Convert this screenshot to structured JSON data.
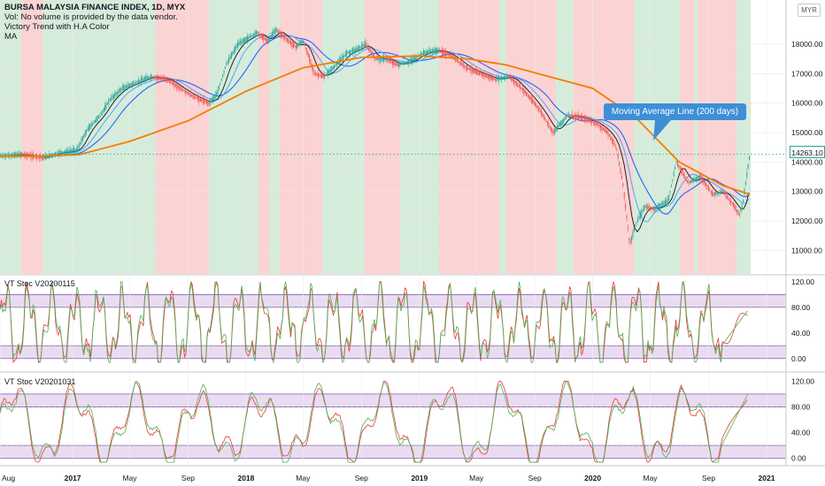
{
  "header": {
    "title": "BURSA MALAYSIA FINANCE INDEX, 1D, MYX",
    "line2": "Vol: No volume is provided by the data vendor.",
    "line3": "Victory Trend with H.A Color",
    "line4": "MA",
    "currency": "MYR"
  },
  "annotation": {
    "text": "Moving Average Line (200 days)"
  },
  "last_price": "14263.10",
  "panes": {
    "osc1_label": "VT Stoc V20200115",
    "osc2_label": "VT Stoc V20201031"
  },
  "colors": {
    "bull_background": "#d6ecda",
    "bear_background": "#fbd3d3",
    "candle_up": "#26a69a",
    "candle_down": "#ef5350",
    "ma200": "#f57c00",
    "ma_short": "#2962ff",
    "osc_green": "#4caf50",
    "osc_red": "#e53935",
    "band_fill": "#eadcf0",
    "band_line": "#7e57c2"
  },
  "chart_data": [
    {
      "type": "line",
      "title": "BURSA MALAYSIA FINANCE INDEX, 1D, MYX",
      "xlabel": "",
      "ylabel": "",
      "x_tick_labels": [
        "Aug",
        "2017",
        "May",
        "Sep",
        "2018",
        "May",
        "Sep",
        "2019",
        "May",
        "Sep",
        "2020",
        "May",
        "Sep",
        "2021"
      ],
      "x_tick_dates": [
        "2016-08-01",
        "2017-01-01",
        "2017-05-01",
        "2017-09-01",
        "2018-01-01",
        "2018-05-01",
        "2018-09-01",
        "2019-01-01",
        "2019-05-01",
        "2019-09-01",
        "2020-01-01",
        "2020-05-01",
        "2020-09-01",
        "2021-01-01"
      ],
      "y_ticks": [
        11000,
        12000,
        13000,
        14000,
        15000,
        16000,
        17000,
        18000
      ],
      "ylim": [
        10200,
        19500
      ],
      "last_value": 14263.1,
      "series": [
        {
          "name": "",
          "style": "close",
          "dates": [
            "2016-08-01",
            "2016-09-15",
            "2016-11-01",
            "2016-12-01",
            "2017-01-10",
            "2017-02-01",
            "2017-03-01",
            "2017-03-20",
            "2017-04-15",
            "2017-05-15",
            "2017-06-15",
            "2017-07-20",
            "2017-08-15",
            "2017-09-15",
            "2017-10-15",
            "2017-11-01",
            "2017-11-20",
            "2017-12-15",
            "2018-01-05",
            "2018-01-25",
            "2018-02-15",
            "2018-03-05",
            "2018-03-25",
            "2018-04-15",
            "2018-05-01",
            "2018-05-15",
            "2018-05-25",
            "2018-06-15",
            "2018-07-10",
            "2018-08-01",
            "2018-08-20",
            "2018-09-10",
            "2018-10-01",
            "2018-10-25",
            "2018-11-15",
            "2018-12-10",
            "2019-01-10",
            "2019-02-10",
            "2019-03-10",
            "2019-04-10",
            "2019-05-10",
            "2019-06-10",
            "2019-07-10",
            "2019-08-10",
            "2019-09-10",
            "2019-10-10",
            "2019-11-10",
            "2019-12-10",
            "2020-01-10",
            "2020-02-01",
            "2020-02-20",
            "2020-03-05",
            "2020-03-19",
            "2020-04-01",
            "2020-04-20",
            "2020-05-10",
            "2020-05-20",
            "2020-06-08",
            "2020-06-25",
            "2020-07-20",
            "2020-08-15",
            "2020-09-10",
            "2020-10-01",
            "2020-10-25",
            "2020-11-05",
            "2020-11-12",
            "2020-11-20",
            "2020-11-27"
          ],
          "values": [
            14200,
            14250,
            14150,
            14300,
            14400,
            15100,
            15600,
            16100,
            16500,
            16700,
            16900,
            16800,
            16500,
            16200,
            16000,
            16300,
            17300,
            18000,
            18200,
            18400,
            18100,
            18500,
            18200,
            17900,
            18100,
            17500,
            17000,
            16900,
            17300,
            17700,
            17800,
            18000,
            17500,
            17500,
            17300,
            17400,
            17700,
            17800,
            17600,
            17200,
            17000,
            16800,
            16900,
            16400,
            15800,
            15000,
            15600,
            15500,
            15300,
            15000,
            14500,
            13200,
            11200,
            11900,
            12500,
            12400,
            12500,
            12700,
            14000,
            13300,
            13500,
            12900,
            13000,
            12500,
            12200,
            12600,
            13500,
            14263
          ]
        },
        {
          "name": "",
          "style": "ma200",
          "dates": [
            "2016-08-01",
            "2016-11-01",
            "2017-01-15",
            "2017-05-01",
            "2017-09-01",
            "2018-01-01",
            "2018-05-01",
            "2018-09-01",
            "2019-01-01",
            "2019-04-15",
            "2019-07-01",
            "2019-10-01",
            "2020-01-01",
            "2020-04-01",
            "2020-07-01",
            "2020-10-01",
            "2020-11-27"
          ],
          "values": [
            14200,
            14200,
            14250,
            14700,
            15400,
            16400,
            17200,
            17550,
            17600,
            17500,
            17300,
            16900,
            16500,
            15500,
            14000,
            13200,
            12900
          ]
        }
      ]
    },
    {
      "type": "line",
      "title": "VT Stoc V20200115",
      "y_ticks": [
        0,
        40,
        80,
        120
      ],
      "ylim": [
        -10,
        128
      ],
      "bands": [
        [
          0,
          20
        ],
        [
          80,
          100
        ]
      ],
      "dashed_levels": [
        20,
        80
      ],
      "last_value": 76
    },
    {
      "type": "line",
      "title": "VT Stoc V20201031",
      "y_ticks": [
        0,
        40,
        80,
        120
      ],
      "ylim": [
        -10,
        130
      ],
      "bands": [
        [
          0,
          20
        ],
        [
          80,
          100
        ]
      ],
      "dashed_levels": [
        20,
        80
      ],
      "last_value": 101
    }
  ]
}
